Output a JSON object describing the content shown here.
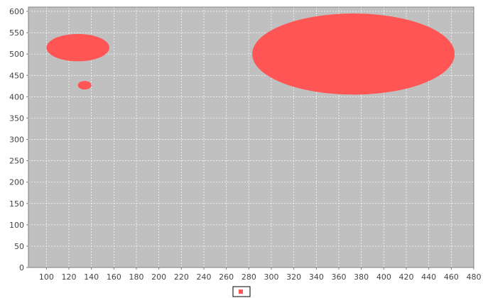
{
  "chart_data": {
    "type": "bubble",
    "title": "",
    "xlabel": "",
    "ylabel": "",
    "xlim": [
      84,
      480
    ],
    "ylim": [
      0,
      610
    ],
    "x_ticks": [
      100,
      120,
      140,
      160,
      180,
      200,
      220,
      240,
      260,
      280,
      300,
      320,
      340,
      360,
      380,
      400,
      420,
      440,
      460,
      480
    ],
    "y_ticks": [
      0,
      50,
      100,
      150,
      200,
      250,
      300,
      350,
      400,
      450,
      500,
      550,
      600
    ],
    "grid": true,
    "legend_position": "bottom-center",
    "plot_background": "#c0c0c0",
    "series": [
      {
        "name": "",
        "color": "#ff5555",
        "points": [
          {
            "x": 128,
            "y": 515,
            "rx": 28,
            "ry": 32
          },
          {
            "x": 134,
            "y": 427,
            "rx": 6,
            "ry": 10
          },
          {
            "x": 373,
            "y": 500,
            "rx": 90,
            "ry": 95
          }
        ]
      }
    ]
  }
}
